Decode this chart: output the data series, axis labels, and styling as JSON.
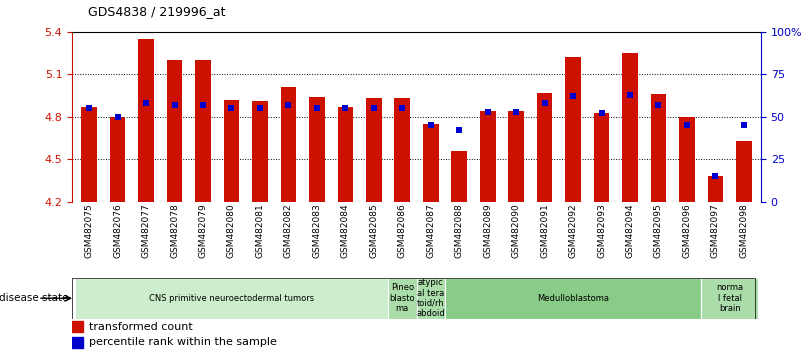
{
  "title": "GDS4838 / 219996_at",
  "samples": [
    "GSM482075",
    "GSM482076",
    "GSM482077",
    "GSM482078",
    "GSM482079",
    "GSM482080",
    "GSM482081",
    "GSM482082",
    "GSM482083",
    "GSM482084",
    "GSM482085",
    "GSM482086",
    "GSM482087",
    "GSM482088",
    "GSM482089",
    "GSM482090",
    "GSM482091",
    "GSM482092",
    "GSM482093",
    "GSM482094",
    "GSM482095",
    "GSM482096",
    "GSM482097",
    "GSM482098"
  ],
  "transformed_count": [
    4.87,
    4.8,
    5.35,
    5.2,
    5.2,
    4.92,
    4.91,
    5.01,
    4.94,
    4.87,
    4.93,
    4.93,
    4.75,
    4.56,
    4.84,
    4.84,
    4.97,
    5.22,
    4.83,
    5.25,
    4.96,
    4.8,
    4.38,
    4.63
  ],
  "percentile_rank": [
    55,
    50,
    58,
    57,
    57,
    55,
    55,
    57,
    55,
    55,
    55,
    55,
    45,
    42,
    53,
    53,
    58,
    62,
    52,
    63,
    57,
    45,
    15,
    45
  ],
  "ylim_left": [
    4.2,
    5.4
  ],
  "ylim_right": [
    0,
    100
  ],
  "yticks_left": [
    4.2,
    4.5,
    4.8,
    5.1,
    5.4
  ],
  "yticks_right": [
    0,
    25,
    50,
    75,
    100
  ],
  "bar_color": "#cc1100",
  "dot_color": "#0000cc",
  "disease_groups": [
    {
      "label": "CNS primitive neuroectodermal tumors",
      "start": 0,
      "end": 11,
      "color": "#cceecc"
    },
    {
      "label": "Pineo\nblasto\nma",
      "start": 11,
      "end": 12,
      "color": "#aaddaa"
    },
    {
      "label": "atypic\nal tera\ntoid/rh\nabdoid",
      "start": 12,
      "end": 13,
      "color": "#aaddaa"
    },
    {
      "label": "Medulloblastoma",
      "start": 13,
      "end": 22,
      "color": "#88cc88"
    },
    {
      "label": "norma\nl fetal\nbrain",
      "start": 22,
      "end": 24,
      "color": "#aaddaa"
    }
  ],
  "base_value": 4.2,
  "bar_width": 0.55
}
